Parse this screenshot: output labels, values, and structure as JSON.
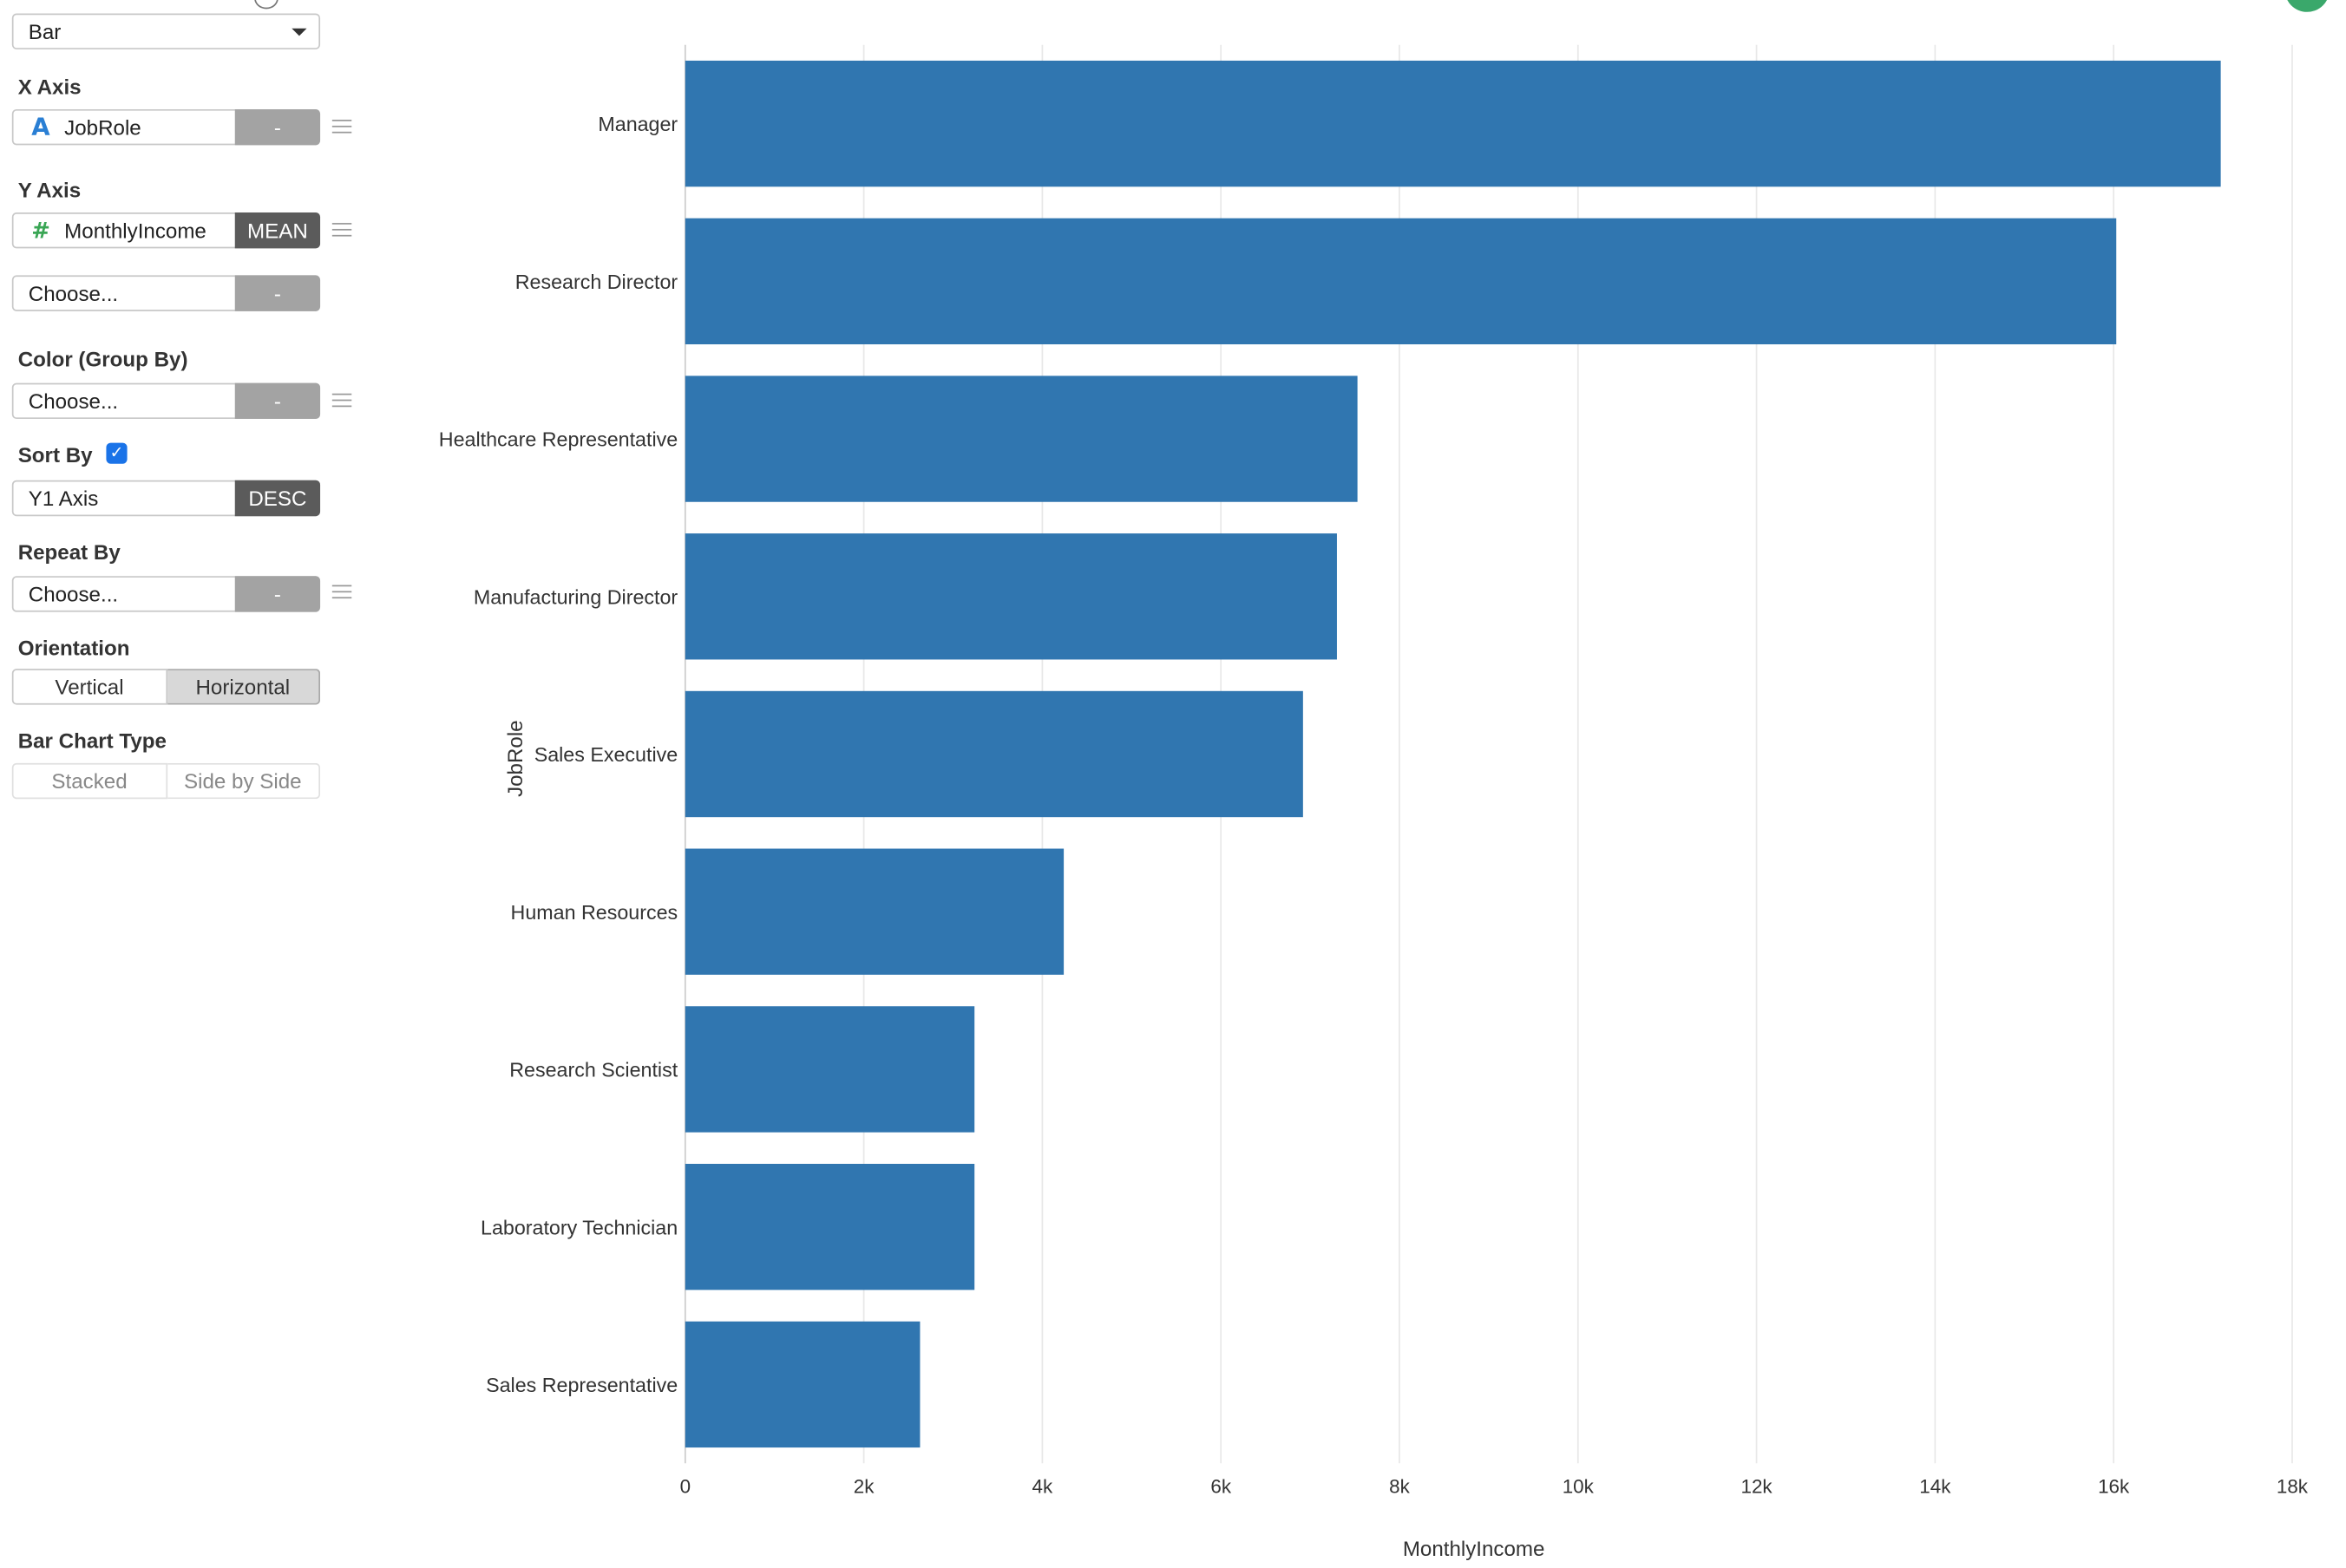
{
  "panel": {
    "chart_type_value": "Bar",
    "x_axis": {
      "label": "X Axis",
      "field": "JobRole",
      "agg": "-"
    },
    "y_axis": {
      "label": "Y Axis",
      "field": "MonthlyIncome",
      "agg": "MEAN",
      "extra_placeholder": "Choose...",
      "extra_agg": "-"
    },
    "color": {
      "label": "Color (Group By)",
      "placeholder": "Choose...",
      "agg": "-"
    },
    "sort": {
      "label": "Sort By",
      "checked": true,
      "field": "Y1 Axis",
      "order": "DESC"
    },
    "repeat": {
      "label": "Repeat By",
      "placeholder": "Choose...",
      "agg": "-"
    },
    "orientation": {
      "label": "Orientation",
      "options": [
        "Vertical",
        "Horizontal"
      ],
      "selected": "Horizontal"
    },
    "bar_type": {
      "label": "Bar Chart Type",
      "options": [
        "Stacked",
        "Side by Side"
      ]
    }
  },
  "chart_data": {
    "type": "bar",
    "orientation": "horizontal",
    "categories": [
      "Manager",
      "Research Director",
      "Healthcare Representative",
      "Manufacturing Director",
      "Sales Executive",
      "Human Resources",
      "Research Scientist",
      "Laboratory Technician",
      "Sales Representative"
    ],
    "values": [
      17200,
      16030,
      7530,
      7300,
      6920,
      4240,
      3240,
      3240,
      2630
    ],
    "xlabel": "MonthlyIncome",
    "ylabel": "JobRole",
    "xlim": [
      0,
      18000
    ],
    "xticks": [
      0,
      2000,
      4000,
      6000,
      8000,
      10000,
      12000,
      14000,
      16000,
      18000
    ],
    "xtick_labels": [
      "0",
      "2k",
      "4k",
      "6k",
      "8k",
      "10k",
      "12k",
      "14k",
      "16k",
      "18k"
    ],
    "grid": true,
    "bar_color": "#3076b0"
  }
}
